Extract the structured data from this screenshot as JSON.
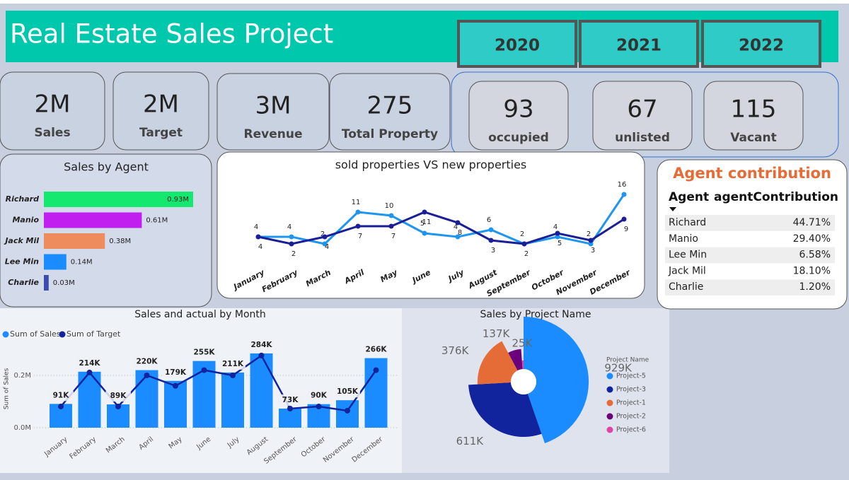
{
  "header": {
    "title": "Real Estate Sales Project",
    "years": [
      "2020",
      "2021",
      "2022"
    ]
  },
  "kpis": [
    {
      "value": "2M",
      "label": "Sales"
    },
    {
      "value": "2M",
      "label": "Target"
    },
    {
      "value": "3M",
      "label": "Revenue"
    },
    {
      "value": 275,
      "label": "Total Property"
    }
  ],
  "status": [
    {
      "value": 93,
      "label": "occupied"
    },
    {
      "value": 67,
      "label": "unlisted"
    },
    {
      "value": 115,
      "label": "Vacant"
    }
  ],
  "chart_data": [
    {
      "type": "bar",
      "orientation": "horizontal",
      "title": "Sales by Agent",
      "categories": [
        "Richard",
        "Manio",
        "Jack Mil",
        "Lee Min",
        "Charlie"
      ],
      "values": [
        0.93,
        0.61,
        0.38,
        0.14,
        0.03
      ],
      "value_labels": [
        "0.93M",
        "0.61M",
        "0.38M",
        "0.14M",
        "0.03M"
      ],
      "colors": [
        "#14e86f",
        "#c11ff0",
        "#ee8c5e",
        "#1a8cff",
        "#3b4bb0"
      ]
    },
    {
      "type": "line",
      "title": "sold properties VS new properties",
      "categories": [
        "January",
        "February",
        "March",
        "April",
        "May",
        "June",
        "July",
        "August",
        "September",
        "October",
        "November",
        "December"
      ],
      "series": [
        {
          "color": "#1e96f0",
          "values": [
            4,
            4,
            2,
            11,
            10,
            5,
            4,
            6,
            2,
            4,
            2,
            16
          ]
        },
        {
          "color": "#1a1f96",
          "values": [
            4,
            2,
            4,
            7,
            7,
            11,
            8,
            3,
            2,
            5,
            3,
            9
          ]
        }
      ]
    },
    {
      "type": "combo",
      "title": "Sales and actual by Month",
      "categories": [
        "January",
        "February",
        "March",
        "April",
        "May",
        "June",
        "July",
        "August",
        "September",
        "October",
        "November",
        "December"
      ],
      "series": [
        {
          "name": "Sum of Sales",
          "type": "bar",
          "color": "#1a8cff",
          "values": [
            0.091,
            0.214,
            0.089,
            0.22,
            0.179,
            0.255,
            0.211,
            0.284,
            0.073,
            0.09,
            0.105,
            0.266
          ],
          "value_labels": [
            "91K",
            "214K",
            "89K",
            "220K",
            "179K",
            "255K",
            "211K",
            "284K",
            "73K",
            "90K",
            "105K",
            "266K"
          ]
        },
        {
          "name": "Sum of Target",
          "type": "line",
          "color": "#12239e",
          "values": [
            0.081,
            0.211,
            0.081,
            0.2,
            0.16,
            0.22,
            0.2,
            0.276,
            0.073,
            0.081,
            0.065,
            0.22
          ]
        }
      ],
      "ylabel": "Sum of Sales",
      "ylim": [
        0,
        0.3
      ],
      "yticks": [
        {
          "value": 0,
          "label": "0.0M"
        },
        {
          "value": 0.2,
          "label": "0.2M"
        }
      ],
      "grid": true
    },
    {
      "type": "pie",
      "title": "Sales by Project Name",
      "legend_title": "Project Name",
      "categories": [
        "Project-5",
        "Project-3",
        "Project-1",
        "Project-2",
        "Project-6"
      ],
      "values": [
        929,
        611,
        376,
        137,
        25
      ],
      "value_labels": [
        "929K",
        "611K",
        "376K",
        "137K",
        "25K"
      ],
      "colors": [
        "#1a8cff",
        "#12239e",
        "#e66c37",
        "#6b007b",
        "#e044a7"
      ]
    }
  ],
  "agent_table": {
    "title": "Agent contribution",
    "columns": [
      "Agent",
      "agentContribution"
    ],
    "rows": [
      [
        "Richard",
        "44.71%"
      ],
      [
        "Manio",
        "29.40%"
      ],
      [
        "Lee Min",
        "6.58%"
      ],
      [
        "Jack Mil",
        "18.10%"
      ],
      [
        "Charlie",
        "1.20%"
      ]
    ]
  }
}
